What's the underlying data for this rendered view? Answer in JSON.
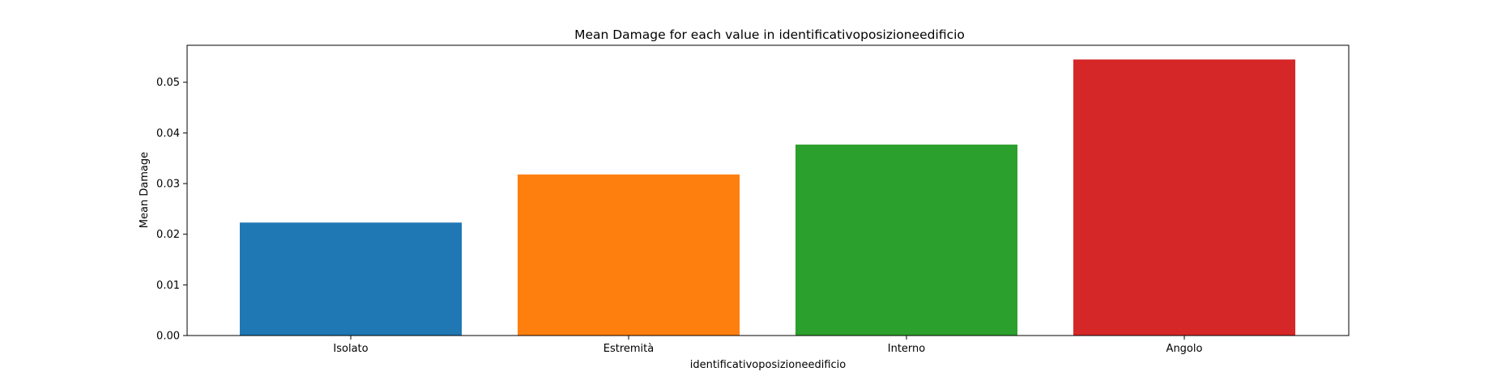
{
  "chart_data": {
    "type": "bar",
    "title": "Mean Damage for each value in identificativoposizioneedificio",
    "xlabel": "identificativoposizioneedificio",
    "ylabel": "Mean Damage",
    "categories": [
      "Isolato",
      "Estremità",
      "Interno",
      "Angolo"
    ],
    "values": [
      0.0223,
      0.0318,
      0.0377,
      0.0545
    ],
    "colors": [
      "#1f77b4",
      "#ff7f0e",
      "#2ca02c",
      "#d62728"
    ],
    "ylim": [
      0,
      0.0573
    ],
    "yticks": [
      0.0,
      0.01,
      0.02,
      0.03,
      0.04,
      0.05
    ],
    "ytick_labels": [
      "0.00",
      "0.01",
      "0.02",
      "0.03",
      "0.04",
      "0.05"
    ],
    "grid": false,
    "legend": "none"
  }
}
